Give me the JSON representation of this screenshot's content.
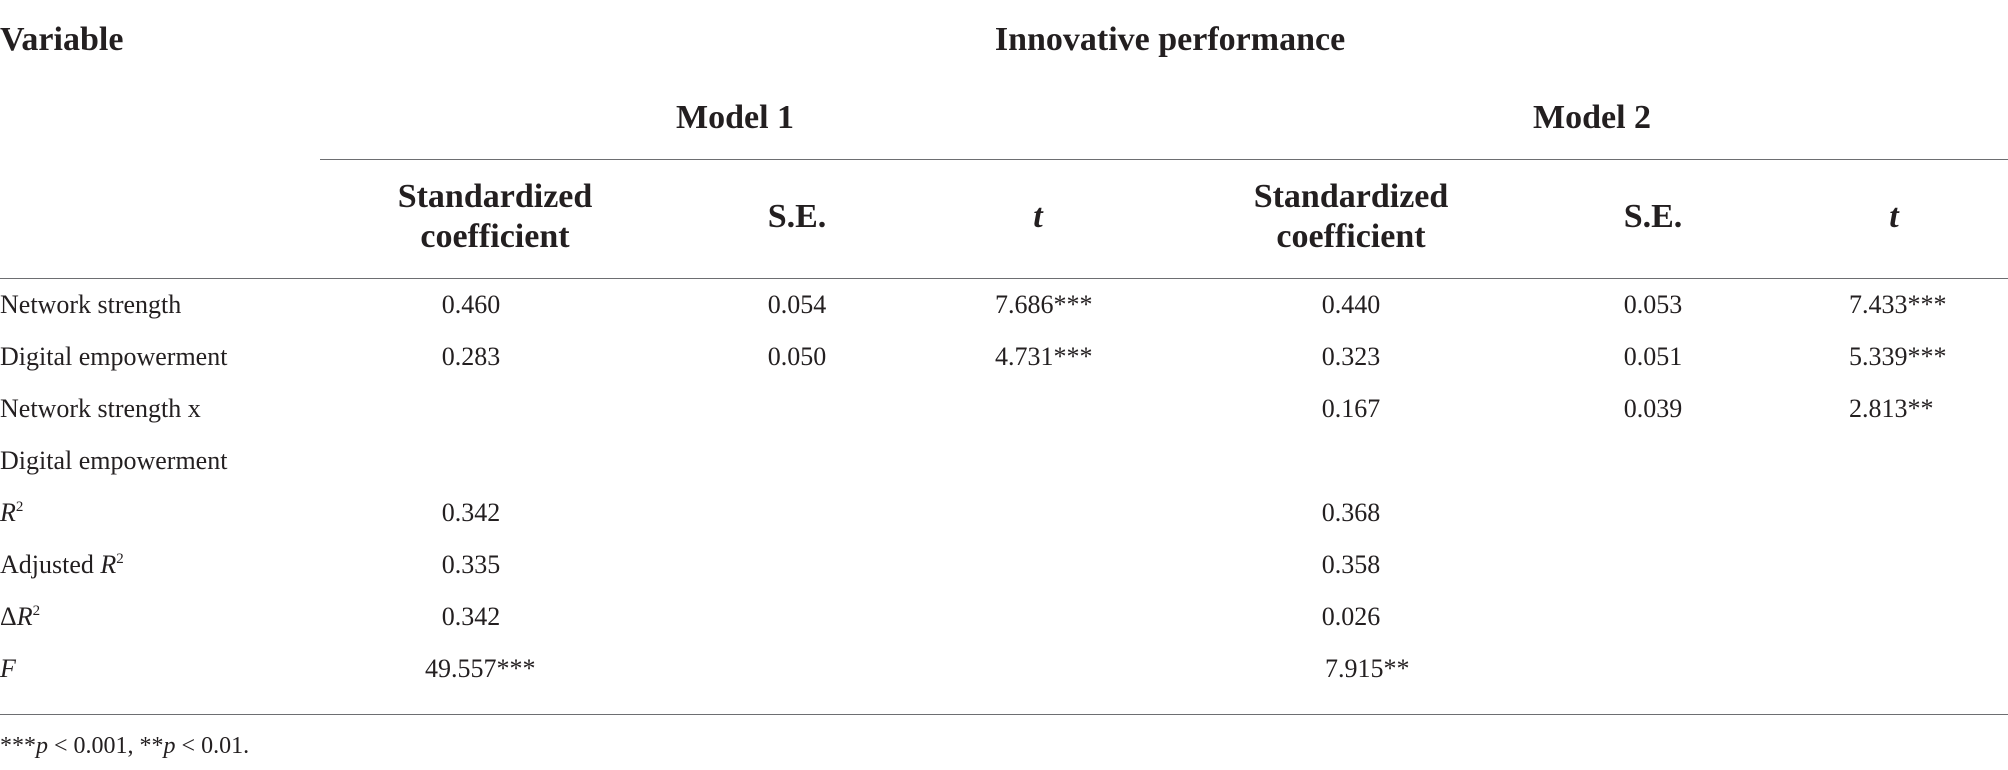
{
  "table": {
    "variable_header": "Variable",
    "dependent_header": "Innovative performance",
    "models": [
      {
        "label": "Model 1",
        "columns": [
          "Standardized",
          "coefficient",
          "S.E.",
          "t"
        ]
      },
      {
        "label": "Model 2",
        "columns": [
          "Standardized",
          "coefficient",
          "S.E.",
          "t"
        ]
      }
    ],
    "rows": [
      {
        "label": "Network strength",
        "m1_coef": "0.460",
        "m1_se": "0.054",
        "m1_t": "7.686***",
        "m2_coef": "0.440",
        "m2_se": "0.053",
        "m2_t": "7.433***"
      },
      {
        "label": "Digital empowerment",
        "m1_coef": "0.283",
        "m1_se": "0.050",
        "m1_t": "4.731***",
        "m2_coef": "0.323",
        "m2_se": "0.051",
        "m2_t": "5.339***"
      },
      {
        "label": "Network strength x",
        "m1_coef": "",
        "m1_se": "",
        "m1_t": "",
        "m2_coef": "0.167",
        "m2_se": "0.039",
        "m2_t": "2.813**"
      },
      {
        "label": "Digital empowerment",
        "m1_coef": "",
        "m1_se": "",
        "m1_t": "",
        "m2_coef": "",
        "m2_se": "",
        "m2_t": ""
      },
      {
        "label_main": "R",
        "label_sup": "2",
        "m1_coef": "0.342",
        "m2_coef": "0.368"
      },
      {
        "label_prefix": "Adjusted ",
        "label_main": "R",
        "label_sup": "2",
        "m1_coef": "0.335",
        "m2_coef": "0.358"
      },
      {
        "label_prefix": "Δ",
        "label_main": "R",
        "label_sup": "2",
        "m1_coef": "0.342",
        "m2_coef": "0.026"
      },
      {
        "label_main": "F",
        "m1_coef": "49.557***",
        "m2_coef": "7.915**"
      }
    ],
    "footnote": {
      "stars3": "***",
      "p": "p",
      "cond1": " < 0.001, ",
      "stars2": "**",
      "cond2": " < 0.01."
    }
  }
}
